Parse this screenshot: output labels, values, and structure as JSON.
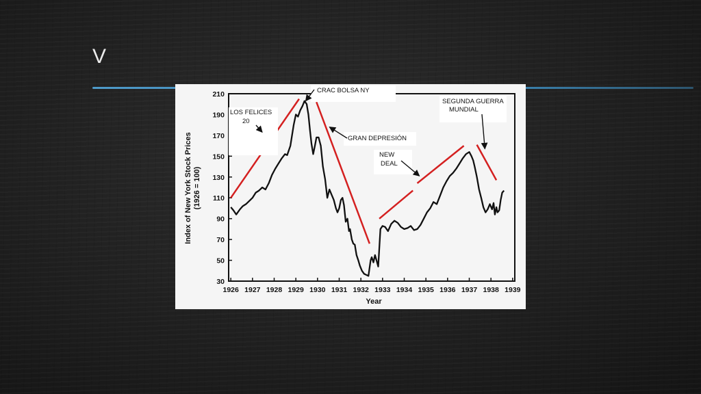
{
  "slide": {
    "title": "V"
  },
  "colors": {
    "background": "#1e1e1e",
    "accent_line": "#4aa0d2",
    "trend_line": "#d42020",
    "data_line": "#111111"
  },
  "chart_data": {
    "type": "line",
    "xlabel": "Year",
    "ylabel_lines": [
      "Index of New York Stock Prices",
      "(1926 = 100)"
    ],
    "xlim": [
      1925.9,
      1939.1
    ],
    "ylim": [
      30,
      210
    ],
    "x_ticks": [
      1926,
      1927,
      1928,
      1929,
      1930,
      1931,
      1932,
      1933,
      1934,
      1935,
      1936,
      1937,
      1938,
      1939
    ],
    "y_ticks": [
      30,
      50,
      70,
      90,
      110,
      130,
      150,
      170,
      190,
      210
    ],
    "grid": false,
    "series": [
      {
        "x": [
          1926.0,
          1926.12,
          1926.25,
          1926.42,
          1926.55,
          1926.7,
          1926.85,
          1927.0,
          1927.15,
          1927.3,
          1927.45,
          1927.6,
          1927.75,
          1927.9,
          1928.05,
          1928.2,
          1928.35,
          1928.5,
          1928.6,
          1928.75,
          1928.9,
          1929.0,
          1929.1,
          1929.2,
          1929.3,
          1929.4,
          1929.5,
          1929.58,
          1929.65,
          1929.72,
          1929.8,
          1929.88,
          1929.95,
          1930.05,
          1930.15,
          1930.25,
          1930.35,
          1930.45,
          1930.55,
          1930.65,
          1930.75,
          1930.85,
          1930.92,
          1931.0,
          1931.08,
          1931.15,
          1931.22,
          1931.3,
          1931.38,
          1931.45,
          1931.5,
          1931.58,
          1931.65,
          1931.72,
          1931.8,
          1931.88,
          1931.95,
          1932.05,
          1932.15,
          1932.25,
          1932.35,
          1932.45,
          1932.5,
          1932.58,
          1932.65,
          1932.72,
          1932.8,
          1932.9,
          1933.0,
          1933.12,
          1933.25,
          1933.4,
          1933.55,
          1933.7,
          1933.85,
          1934.0,
          1934.15,
          1934.3,
          1934.45,
          1934.6,
          1934.75,
          1934.9,
          1935.05,
          1935.2,
          1935.35,
          1935.5,
          1935.65,
          1935.8,
          1935.95,
          1936.1,
          1936.25,
          1936.4,
          1936.55,
          1936.7,
          1936.85,
          1937.0,
          1937.1,
          1937.18,
          1937.25,
          1937.35,
          1937.45,
          1937.55,
          1937.65,
          1937.75,
          1937.85,
          1937.95,
          1938.05,
          1938.12,
          1938.18,
          1938.25,
          1938.3,
          1938.38,
          1938.45,
          1938.52,
          1938.6
        ],
        "y": [
          101,
          98,
          94,
          99,
          102,
          104,
          107,
          110,
          115,
          117,
          120,
          118,
          124,
          132,
          138,
          143,
          148,
          152,
          151,
          160,
          180,
          190,
          188,
          194,
          198,
          203,
          200,
          190,
          175,
          162,
          152,
          160,
          168,
          168,
          160,
          140,
          128,
          110,
          118,
          113,
          108,
          100,
          96,
          100,
          108,
          110,
          103,
          87,
          90,
          78,
          80,
          70,
          66,
          65,
          55,
          50,
          45,
          40,
          37,
          36,
          35,
          50,
          53,
          48,
          55,
          50,
          44,
          80,
          83,
          82,
          78,
          85,
          88,
          86,
          82,
          80,
          81,
          83,
          79,
          80,
          84,
          90,
          96,
          100,
          106,
          104,
          112,
          120,
          126,
          131,
          134,
          138,
          143,
          148,
          152,
          154,
          150,
          146,
          140,
          130,
          118,
          110,
          101,
          96,
          99,
          104,
          99,
          105,
          94,
          101,
          96,
          98,
          108,
          115,
          117
        ]
      }
    ],
    "trend_lines": [
      {
        "x": [
          1926.0,
          1929.15
        ],
        "y": [
          110,
          205
        ]
      },
      {
        "x": [
          1929.95,
          1932.4
        ],
        "y": [
          202,
          66
        ]
      },
      {
        "x": [
          1932.85,
          1934.4
        ],
        "y": [
          90,
          117
        ]
      },
      {
        "x": [
          1934.6,
          1936.75
        ],
        "y": [
          124,
          160
        ]
      },
      {
        "x": [
          1937.35,
          1938.25
        ],
        "y": [
          161,
          127
        ]
      }
    ],
    "annotations": [
      {
        "label": "CRAC BOLSA NY",
        "points_to": [
          1929.45,
          203
        ]
      },
      {
        "label": "LOS FELICES 20",
        "points_to": [
          1927.45,
          173
        ]
      },
      {
        "label": "GRAN DEPRESIÓN",
        "points_to": [
          1930.55,
          178
        ]
      },
      {
        "label": "NEW DEAL",
        "points_to": [
          1934.7,
          131
        ]
      },
      {
        "label": "SEGUNDA GUERRA MUNDIAL",
        "points_to": [
          1937.72,
          157
        ]
      }
    ]
  }
}
